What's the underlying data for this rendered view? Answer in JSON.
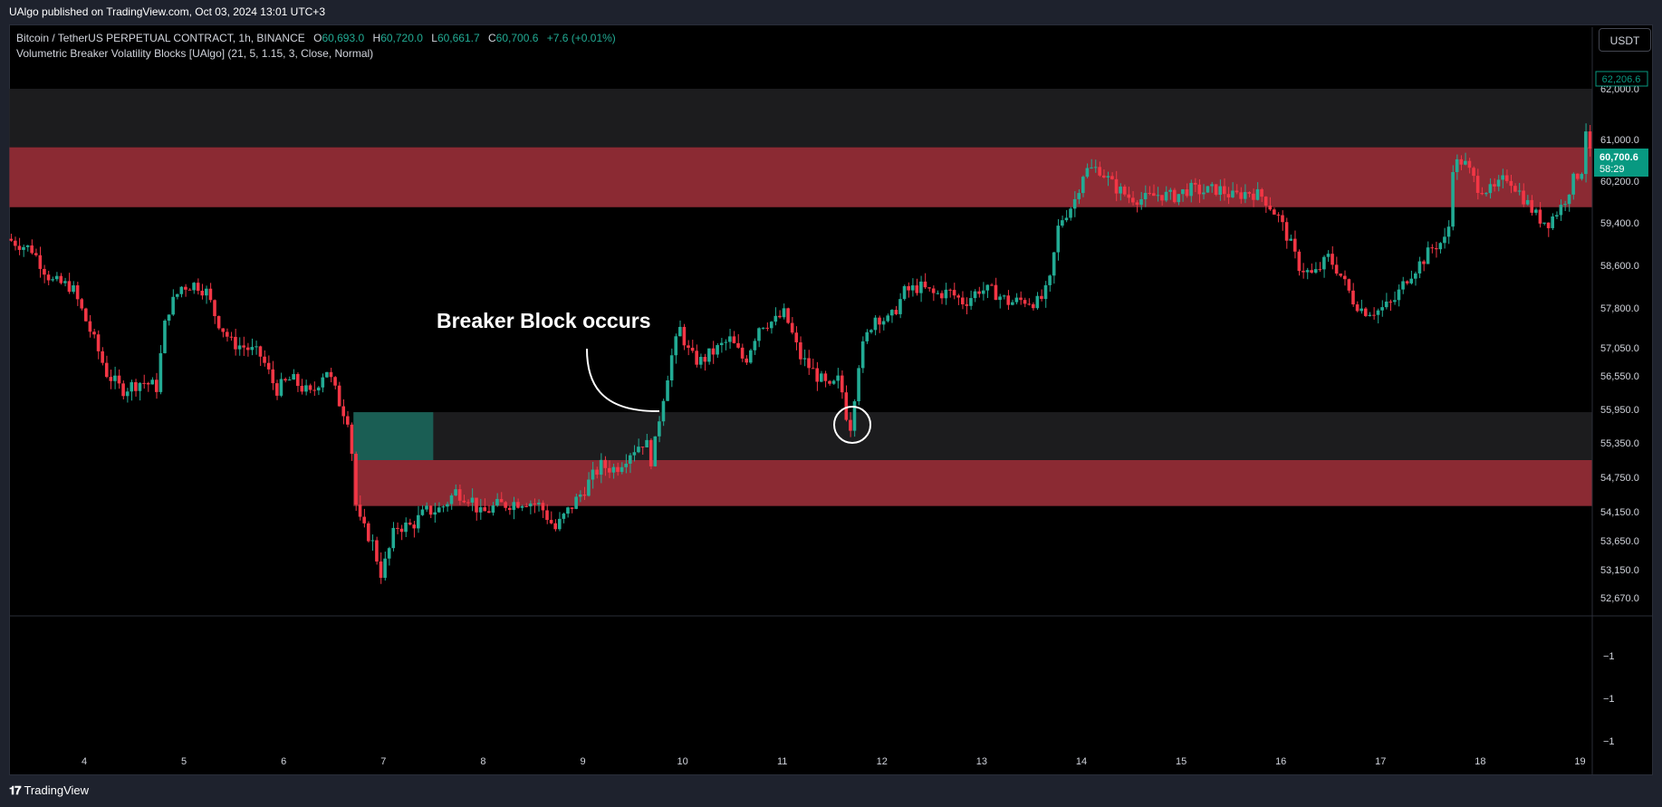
{
  "header": {
    "publish_line": "UAlgo published on TradingView.com, Oct 03, 2024 13:01 UTC+3"
  },
  "legend": {
    "symbol": "Bitcoin / TetherUS PERPETUAL CONTRACT, 1h, BINANCE",
    "o_label": "O",
    "o_value": "60,693.0",
    "h_label": "H",
    "h_value": "60,720.0",
    "l_label": "L",
    "l_value": "60,661.7",
    "c_label": "C",
    "c_value": "60,700.6",
    "change": "+7.6 (+0.01%)",
    "indicator": "Volumetric Breaker Volatility Blocks [UAlgo] (21, 5, 1.15, 3, Close, Normal)"
  },
  "toolbar": {
    "currency": "USDT"
  },
  "footer": {
    "brand": "TradingView"
  },
  "colors": {
    "background": "#000000",
    "up": "#22ab94",
    "down": "#f23645",
    "bearish_block": "#8b2a33",
    "bullish_block": "#1a5e54",
    "neutral_block": "#1c1c1e",
    "price_badge": "#089981"
  },
  "chart_data": {
    "type": "candlestick",
    "timeframe": "1h",
    "y_ticks": [
      62000,
      61000,
      60200,
      59400,
      58600,
      57800,
      57050,
      56550,
      55950,
      55350,
      54750,
      54150,
      53650,
      53150,
      52670
    ],
    "y_tick_labels": [
      "62,000.0",
      "61,000.0",
      "60,200.0",
      "59,400.0",
      "58,600.0",
      "57,800.0",
      "57,050.0",
      "56,550.0",
      "55,950.0",
      "55,350.0",
      "54,750.0",
      "54,150.0",
      "53,650.0",
      "53,150.0",
      "52,670.0"
    ],
    "x_ticks": [
      "4",
      "5",
      "6",
      "7",
      "8",
      "9",
      "10",
      "11",
      "12",
      "13",
      "14",
      "15",
      "16",
      "17",
      "18",
      "19"
    ],
    "x_range_days": [
      3.25,
      19.15
    ],
    "last_price": {
      "value": 60700.6,
      "label": "60,700.6",
      "countdown": "58:29"
    },
    "high_marker": {
      "value": 62206.6,
      "label": "62,206.6"
    },
    "oscillator_ticks": [
      "−1",
      "−1",
      "−1"
    ],
    "blocks": [
      {
        "kind": "bearish",
        "x_start_day": 3.25,
        "x_end_day": 19.15,
        "y_top": 60850,
        "y_bottom": 59700
      },
      {
        "kind": "neutral",
        "x_start_day": 3.25,
        "x_end_day": 19.15,
        "y_top": 62000,
        "y_bottom": 60850
      },
      {
        "kind": "neutral",
        "x_start_day": 6.7,
        "x_end_day": 19.15,
        "y_top": 55900,
        "y_bottom": 55050
      },
      {
        "kind": "bullish",
        "x_start_day": 6.7,
        "x_end_day": 7.5,
        "y_top": 55900,
        "y_bottom": 55050
      },
      {
        "kind": "bearish",
        "x_start_day": 6.7,
        "x_end_day": 19.15,
        "y_top": 55050,
        "y_bottom": 54250
      }
    ],
    "annotation": {
      "text": "Breaker Block occurs"
    },
    "path": [
      [
        3.25,
        59100
      ],
      [
        3.5,
        58900
      ],
      [
        3.7,
        58300
      ],
      [
        3.9,
        58200
      ],
      [
        4.1,
        57300
      ],
      [
        4.25,
        56600
      ],
      [
        4.4,
        56300
      ],
      [
        4.6,
        56450
      ],
      [
        4.75,
        56350
      ],
      [
        4.85,
        57700
      ],
      [
        5.0,
        58200
      ],
      [
        5.15,
        58250
      ],
      [
        5.25,
        58100
      ],
      [
        5.35,
        57600
      ],
      [
        5.5,
        57150
      ],
      [
        5.65,
        57050
      ],
      [
        5.8,
        56900
      ],
      [
        5.95,
        56300
      ],
      [
        6.1,
        56500
      ],
      [
        6.3,
        56200
      ],
      [
        6.45,
        56700
      ],
      [
        6.6,
        56000
      ],
      [
        6.7,
        55700
      ],
      [
        6.72,
        54500
      ],
      [
        6.8,
        53900
      ],
      [
        6.9,
        53700
      ],
      [
        7.0,
        53100
      ],
      [
        7.05,
        53300
      ],
      [
        7.15,
        53900
      ],
      [
        7.3,
        53900
      ],
      [
        7.45,
        54150
      ],
      [
        7.6,
        54200
      ],
      [
        7.75,
        54500
      ],
      [
        7.9,
        54400
      ],
      [
        8.0,
        54100
      ],
      [
        8.15,
        54250
      ],
      [
        8.3,
        54300
      ],
      [
        8.45,
        54350
      ],
      [
        8.6,
        54250
      ],
      [
        8.75,
        53850
      ],
      [
        8.85,
        54100
      ],
      [
        9.0,
        54450
      ],
      [
        9.2,
        54950
      ],
      [
        9.35,
        54900
      ],
      [
        9.5,
        55200
      ],
      [
        9.65,
        55400
      ],
      [
        9.72,
        55000
      ],
      [
        9.8,
        55900
      ],
      [
        9.9,
        56800
      ],
      [
        10.0,
        57400
      ],
      [
        10.1,
        56900
      ],
      [
        10.2,
        56800
      ],
      [
        10.35,
        57000
      ],
      [
        10.5,
        57200
      ],
      [
        10.65,
        56800
      ],
      [
        10.8,
        57500
      ],
      [
        10.95,
        57550
      ],
      [
        11.05,
        57700
      ],
      [
        11.2,
        56900
      ],
      [
        11.35,
        56600
      ],
      [
        11.5,
        56300
      ],
      [
        11.6,
        56500
      ],
      [
        11.7,
        55550
      ],
      [
        11.8,
        56900
      ],
      [
        11.95,
        57650
      ],
      [
        12.1,
        57550
      ],
      [
        12.25,
        58100
      ],
      [
        12.4,
        58200
      ],
      [
        12.55,
        58050
      ],
      [
        12.7,
        58100
      ],
      [
        12.85,
        57900
      ],
      [
        13.0,
        58150
      ],
      [
        13.15,
        58100
      ],
      [
        13.3,
        57900
      ],
      [
        13.45,
        57950
      ],
      [
        13.6,
        57900
      ],
      [
        13.7,
        58200
      ],
      [
        13.8,
        59400
      ],
      [
        13.95,
        59800
      ],
      [
        14.05,
        60400
      ],
      [
        14.2,
        60450
      ],
      [
        14.35,
        60100
      ],
      [
        14.5,
        59900
      ],
      [
        14.65,
        59850
      ],
      [
        14.8,
        59950
      ],
      [
        14.95,
        59900
      ],
      [
        15.1,
        60050
      ],
      [
        15.25,
        60000
      ],
      [
        15.4,
        60050
      ],
      [
        15.55,
        59900
      ],
      [
        15.7,
        60000
      ],
      [
        15.85,
        59900
      ],
      [
        16.0,
        59500
      ],
      [
        16.1,
        59100
      ],
      [
        16.2,
        58600
      ],
      [
        16.35,
        58400
      ],
      [
        16.5,
        58750
      ],
      [
        16.6,
        58500
      ],
      [
        16.75,
        57950
      ],
      [
        16.85,
        57750
      ],
      [
        17.0,
        57750
      ],
      [
        17.15,
        57900
      ],
      [
        17.3,
        58400
      ],
      [
        17.45,
        58700
      ],
      [
        17.55,
        58950
      ],
      [
        17.7,
        59100
      ],
      [
        17.75,
        60500
      ],
      [
        17.85,
        60600
      ],
      [
        18.0,
        60100
      ],
      [
        18.15,
        60000
      ],
      [
        18.3,
        60300
      ],
      [
        18.45,
        59900
      ],
      [
        18.6,
        59500
      ],
      [
        18.7,
        59400
      ],
      [
        18.85,
        59750
      ],
      [
        18.95,
        60200
      ],
      [
        19.05,
        60450
      ],
      [
        19.1,
        61600
      ],
      [
        19.12,
        60700
      ]
    ]
  }
}
